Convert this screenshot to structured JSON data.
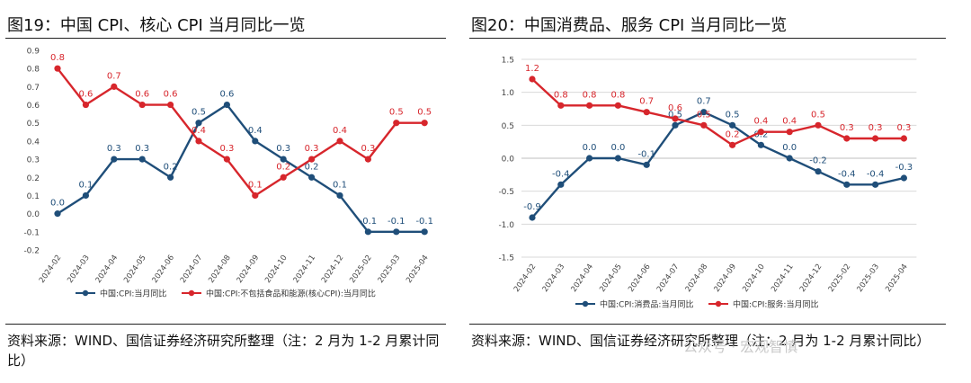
{
  "left": {
    "title": "图19：中国 CPI、核心 CPI 当月同比一览",
    "source": "资料来源：WIND、国信证券经济研究所整理（注：2 月为 1-2 月累计同比）"
  },
  "right": {
    "title": "图20：中国消费品、服务 CPI 当月同比一览",
    "source": "资料来源：WIND、国信证券经济研究所整理（注：2 月为 1-2 月累计同比）"
  },
  "watermark": "公众号 · 宏观智慎",
  "colors": {
    "blue": "#1F4E79",
    "red": "#D7262C",
    "grid": "#d9d9d9",
    "axisText": "#444444"
  },
  "chart_data": [
    {
      "type": "line",
      "categories": [
        "2024-02",
        "2024-03",
        "2024-04",
        "2024-05",
        "2024-06",
        "2024-07",
        "2024-08",
        "2024-09",
        "2024-10",
        "2024-11",
        "2024-12",
        "2025-02",
        "2025-03",
        "2025-04"
      ],
      "series": [
        {
          "name": "中国:CPI:当月同比",
          "color": "#1F4E79",
          "values": [
            0.0,
            0.1,
            0.3,
            0.3,
            0.2,
            0.5,
            0.6,
            0.4,
            0.3,
            0.2,
            0.1,
            -0.1,
            -0.1,
            -0.1
          ]
        },
        {
          "name": "中国:CPI:不包括食品和能源(核心CPI):当月同比",
          "color": "#D7262C",
          "values": [
            0.8,
            0.6,
            0.7,
            0.6,
            0.6,
            0.4,
            0.3,
            0.1,
            0.2,
            0.3,
            0.4,
            0.3,
            0.5,
            0.5
          ]
        }
      ],
      "yticks": [
        "0.9",
        "0.8",
        "0.7",
        "0.6",
        "0.5",
        "0.4",
        "0.3",
        "0.2",
        "0.1",
        "0.0",
        "-0.1",
        "-0.2"
      ],
      "ylim": [
        -0.2,
        0.9
      ],
      "legend": "bottom",
      "grid": false
    },
    {
      "type": "line",
      "categories": [
        "2024-02",
        "2024-03",
        "2024-04",
        "2024-05",
        "2024-06",
        "2024-07",
        "2024-08",
        "2024-09",
        "2024-10",
        "2024-11",
        "2024-12",
        "2025-02",
        "2025-03",
        "2025-04"
      ],
      "series": [
        {
          "name": "中国:CPI:消费品:当月同比",
          "color": "#1F4E79",
          "values": [
            -0.9,
            -0.4,
            0.0,
            0.0,
            -0.1,
            0.5,
            0.7,
            0.5,
            0.2,
            0.0,
            -0.2,
            -0.4,
            -0.4,
            -0.3
          ]
        },
        {
          "name": "中国:CPI:服务:当月同比",
          "color": "#D7262C",
          "values": [
            1.2,
            0.8,
            0.8,
            0.8,
            0.7,
            0.6,
            0.5,
            0.2,
            0.4,
            0.4,
            0.5,
            0.3,
            0.3,
            0.3
          ]
        }
      ],
      "yticks": [
        "1.5",
        "1.0",
        "0.5",
        "0.0",
        "-0.5",
        "-1.0",
        "-1.5"
      ],
      "ylim": [
        -1.5,
        1.5
      ],
      "legend": "bottom",
      "grid": true
    }
  ]
}
